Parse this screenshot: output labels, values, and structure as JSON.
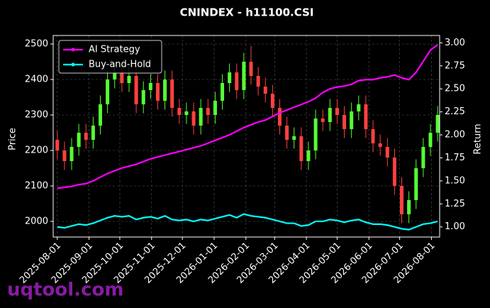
{
  "chart_data": {
    "type": "candlestick",
    "title": "CNINDEX - h11100.CSI",
    "x": [
      "2025-08-01",
      "2025-08-08",
      "2025-08-15",
      "2025-08-22",
      "2025-08-29",
      "2025-09-05",
      "2025-09-12",
      "2025-09-19",
      "2025-09-26",
      "2025-10-03",
      "2025-10-10",
      "2025-10-17",
      "2025-10-24",
      "2025-10-31",
      "2025-11-07",
      "2025-11-14",
      "2025-11-21",
      "2025-11-28",
      "2025-12-05",
      "2025-12-12",
      "2025-12-19",
      "2025-12-26",
      "2026-01-02",
      "2026-01-09",
      "2026-01-16",
      "2026-01-23",
      "2026-01-30",
      "2026-02-06",
      "2026-02-13",
      "2026-02-20",
      "2026-02-27",
      "2026-03-06",
      "2026-03-13",
      "2026-03-20",
      "2026-03-27",
      "2026-04-03",
      "2026-04-10",
      "2026-04-17",
      "2026-04-24",
      "2026-05-01",
      "2026-05-08",
      "2026-05-15",
      "2026-05-22",
      "2026-05-29",
      "2026-06-05",
      "2026-06-12",
      "2026-06-19",
      "2026-06-26",
      "2026-07-03",
      "2026-07-10",
      "2026-07-17",
      "2026-07-24",
      "2026-07-31",
      "2026-08-07"
    ],
    "open": [
      2230,
      2200,
      2170,
      2210,
      2250,
      2230,
      2270,
      2330,
      2400,
      2420,
      2390,
      2410,
      2330,
      2370,
      2390,
      2340,
      2400,
      2320,
      2300,
      2310,
      2270,
      2320,
      2300,
      2340,
      2390,
      2420,
      2370,
      2450,
      2410,
      2380,
      2360,
      2320,
      2270,
      2230,
      2240,
      2170,
      2200,
      2290,
      2280,
      2320,
      2300,
      2260,
      2310,
      2330,
      2260,
      2220,
      2210,
      2180,
      2100,
      2020,
      2060,
      2150,
      2210,
      2250
    ],
    "high": [
      2255,
      2225,
      2235,
      2275,
      2275,
      2295,
      2355,
      2425,
      2445,
      2445,
      2435,
      2435,
      2395,
      2415,
      2415,
      2425,
      2425,
      2345,
      2335,
      2335,
      2345,
      2345,
      2365,
      2415,
      2445,
      2445,
      2475,
      2495,
      2435,
      2405,
      2385,
      2345,
      2295,
      2265,
      2265,
      2225,
      2315,
      2315,
      2345,
      2345,
      2325,
      2335,
      2355,
      2355,
      2285,
      2245,
      2235,
      2205,
      2125,
      2085,
      2175,
      2235,
      2275,
      2325
    ],
    "low": [
      2175,
      2145,
      2145,
      2185,
      2205,
      2205,
      2245,
      2305,
      2375,
      2365,
      2365,
      2305,
      2305,
      2345,
      2315,
      2315,
      2295,
      2275,
      2275,
      2245,
      2245,
      2275,
      2275,
      2315,
      2365,
      2345,
      2345,
      2385,
      2355,
      2335,
      2295,
      2245,
      2205,
      2205,
      2145,
      2145,
      2175,
      2255,
      2255,
      2275,
      2235,
      2235,
      2285,
      2235,
      2195,
      2185,
      2155,
      2075,
      1995,
      1995,
      2035,
      2125,
      2185,
      2225
    ],
    "close": [
      2200,
      2170,
      2210,
      2250,
      2230,
      2270,
      2330,
      2400,
      2420,
      2390,
      2410,
      2330,
      2370,
      2390,
      2340,
      2400,
      2320,
      2300,
      2310,
      2270,
      2320,
      2300,
      2340,
      2390,
      2420,
      2370,
      2450,
      2410,
      2380,
      2360,
      2320,
      2270,
      2230,
      2240,
      2170,
      2200,
      2290,
      2280,
      2320,
      2300,
      2260,
      2310,
      2330,
      2260,
      2220,
      2210,
      2180,
      2100,
      2020,
      2060,
      2150,
      2210,
      2250,
      2300
    ],
    "up_color": "#55ff33",
    "down_color": "#ff4040",
    "series": [
      {
        "name": "AI Strategy",
        "color": "#ff00ff",
        "axis": "y2",
        "values": [
          1.42,
          1.43,
          1.44,
          1.46,
          1.47,
          1.5,
          1.54,
          1.58,
          1.61,
          1.64,
          1.66,
          1.68,
          1.71,
          1.74,
          1.76,
          1.78,
          1.8,
          1.82,
          1.84,
          1.86,
          1.88,
          1.91,
          1.94,
          1.97,
          2.0,
          2.04,
          2.08,
          2.11,
          2.14,
          2.16,
          2.2,
          2.24,
          2.27,
          2.3,
          2.33,
          2.36,
          2.4,
          2.46,
          2.5,
          2.52,
          2.53,
          2.55,
          2.59,
          2.6,
          2.6,
          2.62,
          2.63,
          2.65,
          2.62,
          2.6,
          2.68,
          2.8,
          2.92,
          2.98
        ]
      },
      {
        "name": "Buy-and-Hold",
        "color": "#00ffff",
        "axis": "y2",
        "values": [
          1.0,
          0.99,
          1.01,
          1.03,
          1.02,
          1.04,
          1.07,
          1.1,
          1.12,
          1.11,
          1.12,
          1.08,
          1.1,
          1.11,
          1.09,
          1.12,
          1.08,
          1.07,
          1.08,
          1.06,
          1.08,
          1.07,
          1.09,
          1.11,
          1.13,
          1.1,
          1.14,
          1.12,
          1.11,
          1.1,
          1.08,
          1.06,
          1.04,
          1.04,
          1.01,
          1.02,
          1.06,
          1.06,
          1.08,
          1.07,
          1.05,
          1.07,
          1.08,
          1.05,
          1.03,
          1.03,
          1.02,
          1.0,
          0.98,
          0.97,
          1.0,
          1.03,
          1.04,
          1.06
        ]
      }
    ],
    "xlim": [
      "2025-07-28",
      "2026-08-09"
    ],
    "xticks": [
      "2025-08-01",
      "2025-09-01",
      "2025-10-01",
      "2025-11-01",
      "2025-12-01",
      "2026-01-01",
      "2026-02-01",
      "2026-03-01",
      "2026-04-01",
      "2026-05-01",
      "2026-06-01",
      "2026-07-01",
      "2026-08-01"
    ],
    "ylim": [
      1956,
      2524
    ],
    "yticks": [
      2000,
      2100,
      2200,
      2300,
      2400,
      2500
    ],
    "y2lim": [
      0.89,
      3.08
    ],
    "y2ticks": [
      {
        "value": 1,
        "label": "1.00"
      },
      {
        "value": 1.25,
        "label": "1.25"
      },
      {
        "value": 1.5,
        "label": "1.50"
      },
      {
        "value": 1.75,
        "label": "1.75"
      },
      {
        "value": 2,
        "label": "2.00"
      },
      {
        "value": 2.25,
        "label": "2.25"
      },
      {
        "value": 2.5,
        "label": "2.50"
      },
      {
        "value": 2.75,
        "label": "2.75"
      },
      {
        "value": 3,
        "label": "3.00"
      }
    ],
    "ylabel": "Price",
    "y2label": "Return",
    "grid": true,
    "legend": "upper left"
  },
  "watermark": "uqtool.com"
}
